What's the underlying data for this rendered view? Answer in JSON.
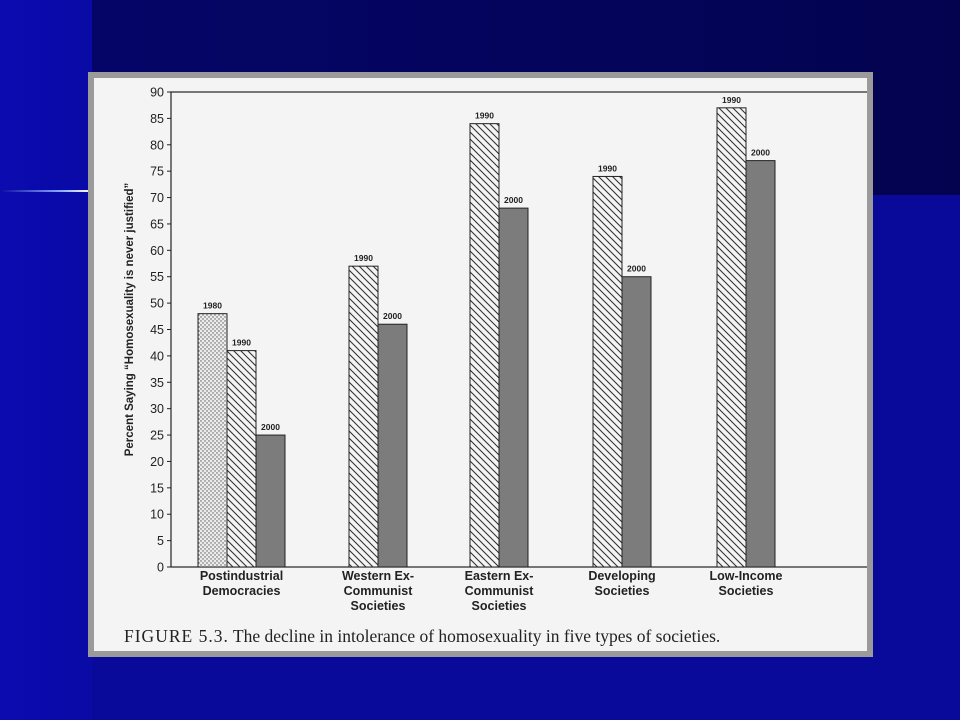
{
  "slide": {
    "colors": {
      "background": "#0a0a9a",
      "scan_border": "#9a9a9a",
      "paper": "#f4f4f4"
    }
  },
  "figure": {
    "label": "FIGURE 5.3.",
    "caption": "The decline in intolerance of homosexuality in five types of societies."
  },
  "chart_data": {
    "type": "bar",
    "ylabel": "Percent Saying “Homosexuality is never justified”",
    "ylim": [
      0,
      90
    ],
    "yticks": [
      0,
      5,
      10,
      15,
      20,
      25,
      30,
      35,
      40,
      45,
      50,
      55,
      60,
      65,
      70,
      75,
      80,
      85,
      90
    ],
    "grid": false,
    "legend": "none (bars labeled by year)",
    "groups": [
      {
        "category": [
          "Postindustrial",
          "Democracies"
        ],
        "bars": [
          {
            "year": "1980",
            "value": 48,
            "pattern": "dotted"
          },
          {
            "year": "1990",
            "value": 41,
            "pattern": "hatched"
          },
          {
            "year": "2000",
            "value": 25,
            "pattern": "solid"
          }
        ]
      },
      {
        "category": [
          "Western Ex-",
          "Communist",
          "Societies"
        ],
        "bars": [
          {
            "year": "1990",
            "value": 57,
            "pattern": "hatched"
          },
          {
            "year": "2000",
            "value": 46,
            "pattern": "solid"
          }
        ]
      },
      {
        "category": [
          "Eastern Ex-",
          "Communist",
          "Societies"
        ],
        "bars": [
          {
            "year": "1990",
            "value": 84,
            "pattern": "hatched"
          },
          {
            "year": "2000",
            "value": 68,
            "pattern": "solid"
          }
        ]
      },
      {
        "category": [
          "Developing",
          "Societies"
        ],
        "bars": [
          {
            "year": "1990",
            "value": 74,
            "pattern": "hatched"
          },
          {
            "year": "2000",
            "value": 55,
            "pattern": "solid"
          }
        ]
      },
      {
        "category": [
          "Low-Income",
          "Societies"
        ],
        "bars": [
          {
            "year": "1990",
            "value": 87,
            "pattern": "hatched"
          },
          {
            "year": "2000",
            "value": 77,
            "pattern": "solid"
          }
        ]
      }
    ]
  }
}
